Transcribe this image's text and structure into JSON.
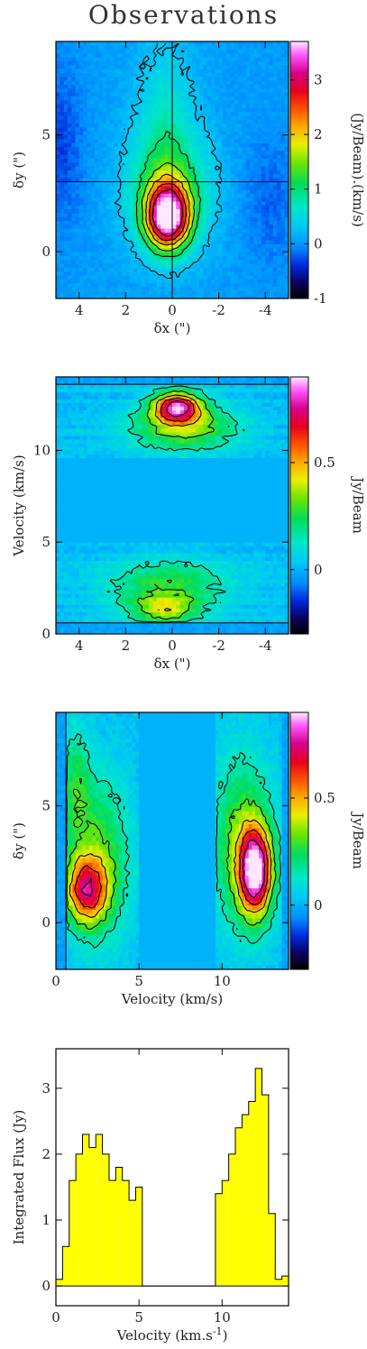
{
  "title": "Observations",
  "chart_data": [
    {
      "type": "heatmap",
      "xlabel": "δx (\")",
      "ylabel": "δy (\")",
      "xlim": [
        5,
        -5
      ],
      "ylim": [
        -2,
        9
      ],
      "x_ticks": [
        4,
        2,
        0,
        -2,
        -4
      ],
      "y_ticks": [
        0,
        5
      ],
      "crosshair": {
        "x": 0,
        "y": 3
      },
      "colorbar": {
        "label": "(Jy/Beam).(km/s)",
        "range": [
          -1,
          3.7
        ],
        "ticks": [
          -1,
          0,
          1,
          2,
          3
        ]
      },
      "contour_levels": [
        0.3,
        1.0,
        1.5,
        2.0,
        2.5,
        3.0
      ]
    },
    {
      "type": "heatmap",
      "xlabel": "δx (\")",
      "ylabel": "Velocity (km/s)",
      "xlim": [
        5,
        -5
      ],
      "ylim": [
        0,
        14
      ],
      "x_ticks": [
        4,
        2,
        0,
        -2,
        -4
      ],
      "y_ticks": [
        0,
        5,
        10
      ],
      "colorbar": {
        "label": "Jy/Beam",
        "range": [
          -0.3,
          0.9
        ],
        "ticks": [
          0,
          0.5
        ]
      },
      "contour_levels": [
        0.15,
        0.3,
        0.45,
        0.6,
        0.75
      ]
    },
    {
      "type": "heatmap",
      "xlabel": "Velocity (km/s)",
      "ylabel": "δy (\")",
      "xlim": [
        0,
        14
      ],
      "ylim": [
        -2,
        9
      ],
      "x_ticks": [
        0,
        5,
        10
      ],
      "y_ticks": [
        0,
        5
      ],
      "colorbar": {
        "label": "Jy/Beam",
        "range": [
          -0.3,
          0.9
        ],
        "ticks": [
          0,
          0.5
        ]
      },
      "contour_levels": [
        0.15,
        0.3,
        0.45,
        0.6,
        0.75
      ]
    },
    {
      "type": "bar",
      "style": "histogram",
      "xlabel": "Velocity (km.s",
      "xlabel_superscript": "-1",
      "xlabel_suffix": ")",
      "ylabel": "Integrated Flux (Jy)",
      "xlim": [
        0,
        14
      ],
      "ylim": [
        -0.3,
        3.6
      ],
      "x_ticks": [
        0,
        5,
        10
      ],
      "y_ticks": [
        0,
        1,
        2,
        3
      ],
      "bin_width": 0.4,
      "x": [
        0.0,
        0.4,
        0.8,
        1.2,
        1.6,
        2.0,
        2.4,
        2.8,
        3.2,
        3.6,
        4.0,
        4.4,
        4.8,
        5.2,
        5.6,
        6.0,
        6.4,
        6.8,
        7.2,
        7.6,
        8.0,
        8.4,
        8.8,
        9.2,
        9.6,
        10.0,
        10.4,
        10.8,
        11.2,
        11.6,
        12.0,
        12.4,
        12.8,
        13.2,
        13.6
      ],
      "values": [
        0.1,
        0.6,
        1.6,
        2.0,
        2.3,
        2.1,
        2.3,
        2.0,
        1.6,
        1.8,
        1.6,
        1.3,
        1.5,
        0.0,
        0.0,
        0.0,
        0.0,
        0.0,
        0.0,
        0.0,
        0.0,
        0.0,
        0.0,
        0.0,
        1.4,
        1.6,
        2.0,
        2.4,
        2.6,
        2.8,
        3.3,
        2.9,
        1.1,
        0.1,
        0.15
      ],
      "fill_color": "#ffff00"
    }
  ],
  "colors": {
    "background": "#ffffff",
    "bar_fill": "#ffff00",
    "contour": "#000000"
  }
}
